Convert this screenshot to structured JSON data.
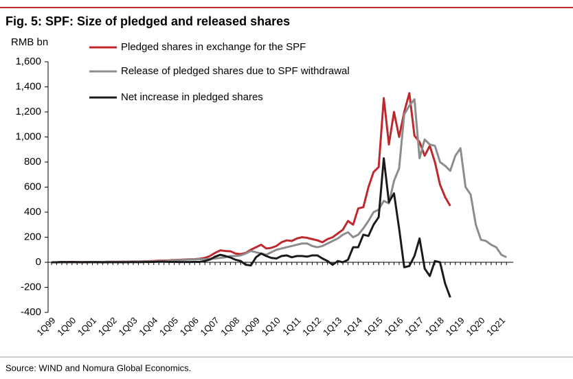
{
  "chart_data": {
    "type": "line",
    "title": "Fig. 5: SPF: Size of pledged and released shares",
    "y_label": "RMB bn",
    "source": "Source: WIND and Nomura Global Economics.",
    "categories": [
      "1Q99",
      null,
      null,
      null,
      "1Q00",
      null,
      null,
      null,
      "1Q01",
      null,
      null,
      null,
      "1Q02",
      null,
      null,
      null,
      "1Q03",
      null,
      null,
      null,
      "1Q04",
      null,
      null,
      null,
      "1Q05",
      null,
      null,
      null,
      "1Q06",
      null,
      null,
      null,
      "1Q07",
      null,
      null,
      null,
      "1Q08",
      null,
      null,
      null,
      "1Q09",
      null,
      null,
      null,
      "1Q10",
      null,
      null,
      null,
      "1Q11",
      null,
      null,
      null,
      "1Q12",
      null,
      null,
      null,
      "1Q13",
      null,
      null,
      null,
      "1Q14",
      null,
      null,
      null,
      "1Q15",
      null,
      null,
      null,
      "1Q16",
      null,
      null,
      null,
      "1Q17",
      null,
      null,
      null,
      "1Q18",
      null,
      null,
      null,
      "1Q19",
      null,
      null,
      null,
      "1Q20",
      null,
      null,
      null,
      "1Q21",
      null
    ],
    "series": [
      {
        "name": "Pledged shares in exchange for the SPF",
        "color": "#c0272d",
        "values": [
          0,
          0,
          2,
          2,
          3,
          2,
          2,
          3,
          3,
          3,
          3,
          4,
          4,
          4,
          5,
          5,
          6,
          6,
          7,
          8,
          10,
          12,
          14,
          15,
          18,
          20,
          22,
          24,
          25,
          28,
          35,
          50,
          75,
          95,
          90,
          88,
          70,
          65,
          75,
          100,
          120,
          140,
          110,
          115,
          130,
          160,
          175,
          170,
          190,
          200,
          195,
          185,
          175,
          160,
          185,
          200,
          230,
          260,
          330,
          300,
          430,
          440,
          600,
          720,
          760,
          1310,
          940,
          1200,
          1000,
          1200,
          1350,
          1010,
          960,
          850,
          930,
          800,
          620,
          520,
          450,
          null,
          null,
          null,
          null,
          null,
          null,
          null,
          null,
          null,
          null,
          null
        ]
      },
      {
        "name": "Release of pledged shares due to SPF withdrawal",
        "color": "#8c8c8c",
        "values": [
          0,
          0,
          0,
          1,
          1,
          1,
          2,
          2,
          2,
          2,
          3,
          3,
          3,
          3,
          4,
          4,
          4,
          5,
          5,
          6,
          7,
          8,
          10,
          12,
          15,
          18,
          20,
          22,
          22,
          25,
          25,
          28,
          30,
          35,
          40,
          50,
          50,
          55,
          70,
          90,
          80,
          70,
          60,
          80,
          100,
          110,
          120,
          130,
          140,
          150,
          150,
          130,
          120,
          130,
          150,
          170,
          190,
          220,
          240,
          200,
          220,
          270,
          330,
          400,
          420,
          490,
          470,
          650,
          750,
          1180,
          1250,
          1300,
          830,
          980,
          940,
          930,
          800,
          770,
          730,
          850,
          910,
          600,
          540,
          300,
          180,
          170,
          140,
          120,
          60,
          40
        ]
      },
      {
        "name": "Net increase in pledged shares",
        "color": "#1a1a1a",
        "values": [
          0,
          0,
          2,
          1,
          2,
          1,
          0,
          1,
          1,
          1,
          0,
          1,
          1,
          1,
          1,
          1,
          2,
          1,
          2,
          2,
          3,
          4,
          4,
          3,
          3,
          2,
          2,
          2,
          3,
          3,
          10,
          22,
          45,
          60,
          50,
          38,
          20,
          10,
          -20,
          -25,
          40,
          70,
          50,
          35,
          30,
          50,
          55,
          40,
          50,
          50,
          45,
          55,
          55,
          30,
          10,
          -20,
          10,
          0,
          20,
          120,
          120,
          220,
          210,
          300,
          360,
          830,
          480,
          550,
          270,
          -40,
          -30,
          50,
          190,
          -50,
          -110,
          10,
          0,
          -170,
          -280,
          null,
          null,
          null,
          null,
          null,
          null,
          null,
          null,
          null,
          null,
          null
        ]
      }
    ],
    "ylim": [
      -400,
      1600
    ],
    "yticks": [
      -400,
      -200,
      0,
      200,
      400,
      600,
      800,
      {
        "value": 1000,
        "label": "1,000"
      },
      {
        "value": 1200,
        "label": "1,200"
      },
      {
        "value": 1400,
        "label": "1,400"
      },
      {
        "value": 1600,
        "label": "1,600"
      }
    ]
  }
}
